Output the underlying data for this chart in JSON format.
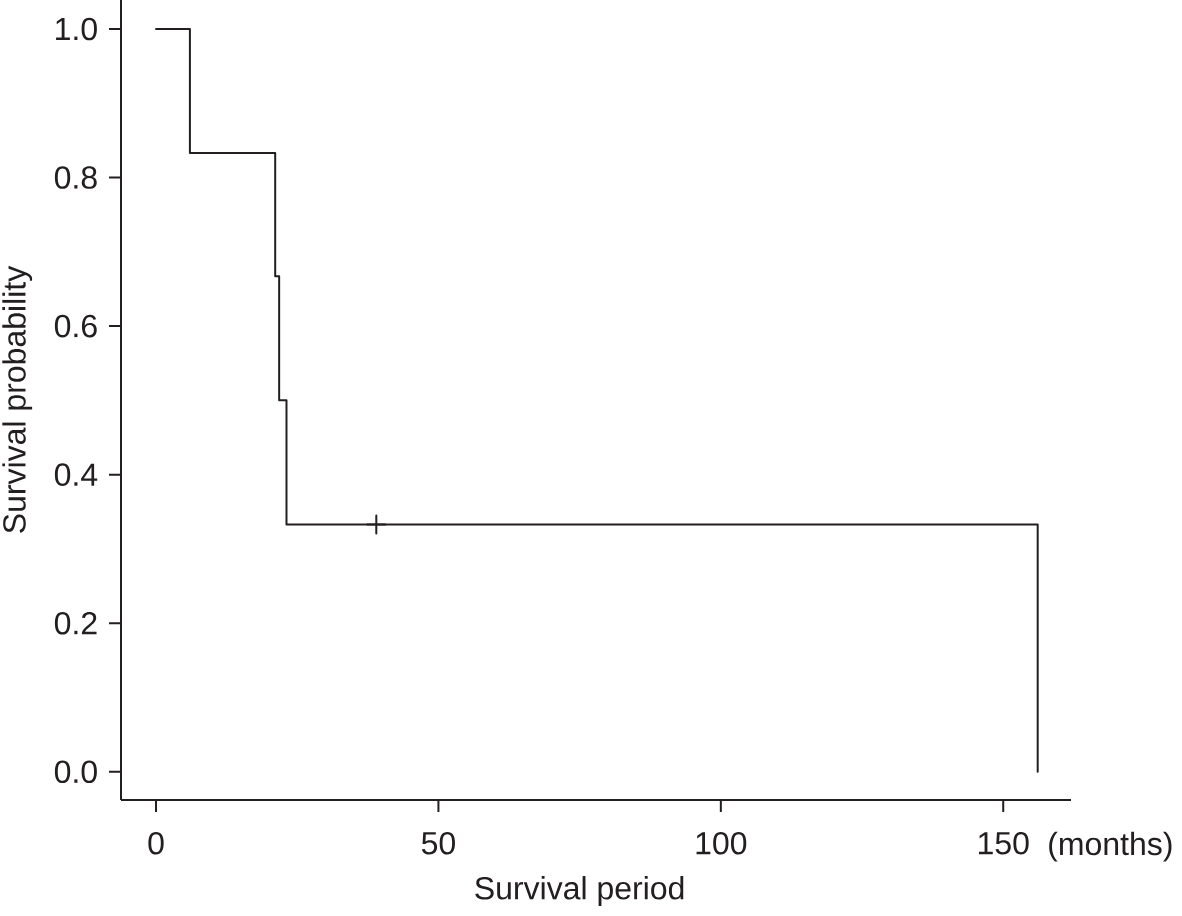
{
  "chart_data": {
    "type": "step",
    "xlabel": "Survival period",
    "ylabel": "Survival probability",
    "annotations": [
      "(months)"
    ],
    "xlim": [
      -6.2,
      162
    ],
    "ylim": [
      -0.038,
      1.039
    ],
    "xticks": [
      0,
      50,
      100,
      150
    ],
    "yticks": [
      {
        "value": 0,
        "label": "0.0"
      },
      0.2,
      0.4,
      0.6,
      0.8,
      {
        "value": 1,
        "label": "1.0"
      }
    ],
    "grid": false,
    "series": [
      {
        "color": "#231f20",
        "marker": "none",
        "line_style": "solid",
        "x": [
          0,
          6,
          21.1,
          21.8,
          23.1,
          156.1
        ],
        "values": [
          1,
          0.833,
          0.667,
          0.5,
          0.333,
          0
        ]
      },
      {
        "type": "scatter",
        "color": "#231f20",
        "marker": "cross",
        "x": [
          39
        ],
        "values": [
          0.333
        ]
      }
    ]
  }
}
